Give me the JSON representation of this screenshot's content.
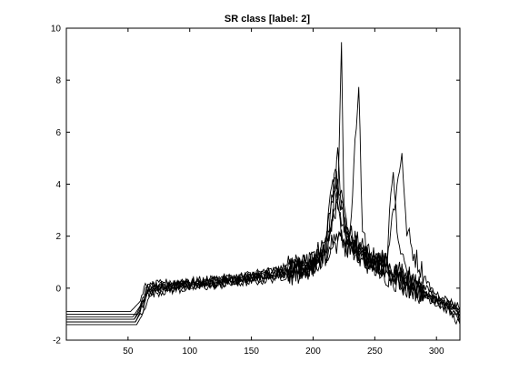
{
  "chart_data": {
    "type": "line",
    "title": "SR class [label: 2]",
    "xlabel": "",
    "ylabel": "",
    "xlim": [
      0,
      319
    ],
    "ylim": [
      -2,
      10
    ],
    "xticks": [
      50,
      100,
      150,
      200,
      250,
      300
    ],
    "yticks": [
      -2,
      0,
      2,
      4,
      6,
      8,
      10
    ],
    "grid": false,
    "legend": "none",
    "line_color": "#000000",
    "series": [
      {
        "x": [
          0,
          52,
          60,
          63,
          70,
          80,
          100,
          120,
          140,
          160,
          180,
          200,
          210,
          215,
          220,
          223,
          225,
          228,
          235,
          240,
          250,
          260,
          270,
          280,
          290,
          300,
          310,
          319
        ],
        "y": [
          -0.9,
          -0.9,
          -0.5,
          0.0,
          0.1,
          0.1,
          0.2,
          0.3,
          0.4,
          0.6,
          0.8,
          1.0,
          1.6,
          2.5,
          3.5,
          9.8,
          3.0,
          2.2,
          1.8,
          1.5,
          1.0,
          0.5,
          0.2,
          0.0,
          -0.3,
          -0.5,
          -0.7,
          -0.9
        ]
      },
      {
        "x": [
          0,
          54,
          61,
          64,
          70,
          80,
          100,
          120,
          140,
          160,
          180,
          200,
          210,
          220,
          230,
          237,
          240,
          250,
          260,
          270,
          280,
          290,
          300,
          310,
          319
        ],
        "y": [
          -1.1,
          -1.1,
          -0.6,
          -0.1,
          0.0,
          0.1,
          0.15,
          0.25,
          0.35,
          0.5,
          0.7,
          0.9,
          1.3,
          1.8,
          2.0,
          7.8,
          1.8,
          1.2,
          0.8,
          0.4,
          0.1,
          -0.2,
          -0.4,
          -0.6,
          -0.8
        ]
      },
      {
        "x": [
          0,
          55,
          62,
          65,
          70,
          80,
          100,
          120,
          140,
          160,
          180,
          200,
          210,
          215,
          220,
          230,
          240,
          250,
          260,
          265,
          270,
          272,
          275,
          280,
          290,
          300,
          310,
          319
        ],
        "y": [
          -1.2,
          -1.2,
          -0.7,
          -0.1,
          0.0,
          0.05,
          0.1,
          0.2,
          0.3,
          0.45,
          0.6,
          0.8,
          1.2,
          1.8,
          2.0,
          1.5,
          1.3,
          1.0,
          1.2,
          3.0,
          4.5,
          5.4,
          2.5,
          1.5,
          0.5,
          -0.4,
          -0.7,
          -1.0
        ]
      },
      {
        "x": [
          0,
          56,
          62,
          65,
          70,
          80,
          100,
          120,
          140,
          160,
          180,
          200,
          210,
          215,
          220,
          225,
          230,
          240,
          250,
          260,
          265,
          268,
          272,
          280,
          290,
          300,
          310,
          319
        ],
        "y": [
          -1.3,
          -1.3,
          -0.8,
          -0.2,
          -0.1,
          0.0,
          0.1,
          0.15,
          0.25,
          0.4,
          0.6,
          0.9,
          1.5,
          2.5,
          5.0,
          2.5,
          1.8,
          1.4,
          1.0,
          1.3,
          4.7,
          2.0,
          1.2,
          0.2,
          -0.2,
          -0.5,
          -0.8,
          -1.2
        ]
      },
      {
        "x": [
          0,
          57,
          63,
          66,
          70,
          80,
          100,
          120,
          140,
          160,
          180,
          200,
          210,
          218,
          222,
          226,
          232,
          240,
          250,
          260,
          270,
          280,
          290,
          300,
          310,
          319
        ],
        "y": [
          -1.4,
          -1.4,
          -0.9,
          -0.3,
          -0.2,
          -0.1,
          0.0,
          0.1,
          0.2,
          0.3,
          0.5,
          0.8,
          1.3,
          4.8,
          2.2,
          1.6,
          1.4,
          1.1,
          0.8,
          0.5,
          0.2,
          0.0,
          -0.3,
          -0.6,
          -0.9,
          -1.4
        ]
      },
      {
        "x": [
          0,
          58,
          63,
          66,
          70,
          80,
          100,
          120,
          140,
          160,
          180,
          200,
          210,
          216,
          220,
          226,
          232,
          240,
          250,
          260,
          270,
          280,
          290,
          300,
          310,
          319
        ],
        "y": [
          -1.0,
          -1.0,
          -0.5,
          0.0,
          0.1,
          0.2,
          0.25,
          0.35,
          0.45,
          0.6,
          0.8,
          1.1,
          1.7,
          4.0,
          3.2,
          2.0,
          1.6,
          1.3,
          1.1,
          0.9,
          0.6,
          0.3,
          0.0,
          -0.2,
          -0.5,
          -0.7
        ]
      },
      {
        "x": [
          0,
          55,
          61,
          64,
          70,
          80,
          100,
          120,
          140,
          160,
          180,
          200,
          210,
          218,
          224,
          230,
          240,
          250,
          260,
          270,
          280,
          290,
          300,
          310,
          319
        ],
        "y": [
          -1.2,
          -1.2,
          -0.6,
          -0.1,
          0.05,
          0.1,
          0.2,
          0.3,
          0.35,
          0.5,
          0.7,
          1.0,
          1.4,
          4.2,
          3.0,
          1.7,
          1.3,
          1.0,
          0.8,
          0.5,
          0.2,
          -0.1,
          -0.4,
          -0.6,
          -1.0
        ]
      },
      {
        "x": [
          0,
          56,
          62,
          65,
          70,
          80,
          100,
          120,
          140,
          160,
          180,
          200,
          210,
          215,
          220,
          230,
          240,
          250,
          260,
          270,
          280,
          290,
          300,
          310,
          319
        ],
        "y": [
          -1.3,
          -1.3,
          -0.7,
          -0.2,
          -0.05,
          0.0,
          0.1,
          0.2,
          0.3,
          0.45,
          0.6,
          0.9,
          1.3,
          2.2,
          3.8,
          1.6,
          1.2,
          1.0,
          0.7,
          0.4,
          0.1,
          -0.2,
          -0.5,
          -0.8,
          -1.1
        ]
      }
    ]
  }
}
